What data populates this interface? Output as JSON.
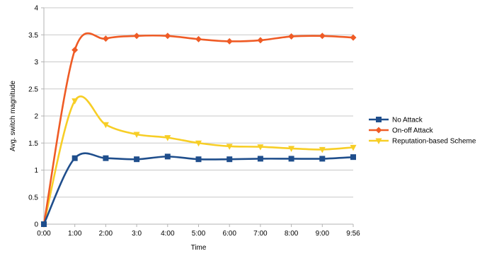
{
  "chart_data": {
    "type": "line",
    "xlabel": "Time",
    "ylabel": "Avg. switch magnitude",
    "categories": [
      "0:00",
      "1:00",
      "2:00",
      "3:0",
      "4:00",
      "5:00",
      "6:00",
      "7:00",
      "8:00",
      "9:00",
      "9:56"
    ],
    "ylim": [
      0,
      4
    ],
    "yticks": [
      "0",
      "0.5",
      "1",
      "1.5",
      "2",
      "2.5",
      "3",
      "3.5",
      "4"
    ],
    "grid": "horizontal",
    "legend_position": "right",
    "smooth": true,
    "series": [
      {
        "name": "No Attack",
        "color": "#1f4e8c",
        "marker": "square",
        "values": [
          0,
          1.22,
          1.22,
          1.2,
          1.25,
          1.2,
          1.2,
          1.21,
          1.21,
          1.21,
          1.24
        ]
      },
      {
        "name": "On-off Attack",
        "color": "#ef5b25",
        "marker": "diamond",
        "values": [
          0,
          3.22,
          3.43,
          3.48,
          3.48,
          3.42,
          3.38,
          3.4,
          3.47,
          3.48,
          3.45
        ]
      },
      {
        "name": "Reputation-based Scheme",
        "color": "#f7ce26",
        "marker": "triangle-down",
        "values": [
          0,
          2.28,
          1.84,
          1.66,
          1.6,
          1.5,
          1.44,
          1.43,
          1.4,
          1.38,
          1.42
        ]
      }
    ]
  }
}
